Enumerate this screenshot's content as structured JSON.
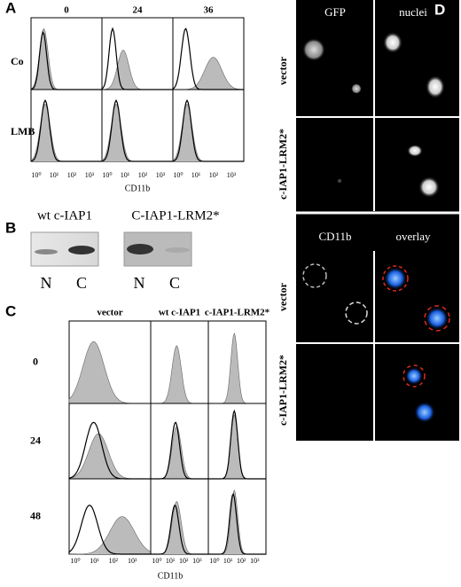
{
  "panels": {
    "A": {
      "label": "A",
      "columns": [
        "0",
        "24",
        "36"
      ],
      "rows": [
        "Co",
        "LMB"
      ],
      "axis_ticks": [
        "10⁰",
        "10¹",
        "10²",
        "10³"
      ],
      "axis_label": "CD11b"
    },
    "B": {
      "label": "B",
      "groups": [
        {
          "title": "wt c-IAP1",
          "lanes": [
            "N",
            "C"
          ]
        },
        {
          "title": "C-IAP1-LRM2*",
          "lanes": [
            "N",
            "C"
          ]
        }
      ]
    },
    "C": {
      "label": "C",
      "columns": [
        "vector",
        "wt c-IAP1",
        "c-IAP1-LRM2*"
      ],
      "rows": [
        "0",
        "24",
        "48"
      ],
      "axis_ticks": [
        "10⁰",
        "10¹",
        "10²",
        "10³"
      ],
      "axis_label": "CD11b"
    },
    "D": {
      "label": "D",
      "top": {
        "columns": [
          "GFP",
          "nuclei"
        ],
        "rows": [
          "vector",
          "c-IAP1-LRM2*"
        ]
      },
      "bottom": {
        "columns": [
          "CD11b",
          "overlay"
        ],
        "rows": [
          "vector",
          "c-IAP1-LRM2*"
        ]
      }
    }
  }
}
